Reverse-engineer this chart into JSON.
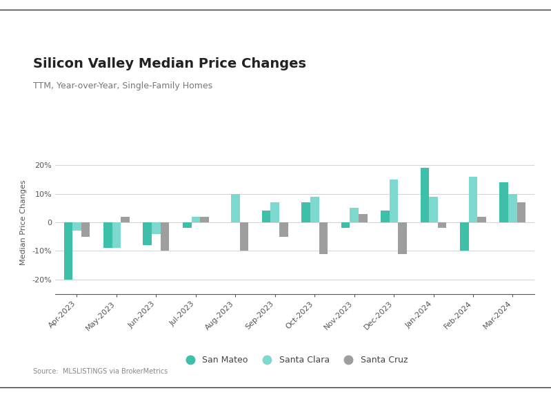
{
  "title": "Silicon Valley Median Price Changes",
  "subtitle": "TTM, Year-over-Year, Single-Family Homes",
  "ylabel": "Median Price Changes",
  "source": "Source:  MLSLISTINGS via BrokerMetrics",
  "categories": [
    "Apr-2023",
    "May-2023",
    "Jun-2023",
    "Jul-2023",
    "Aug-2023",
    "Sep-2023",
    "Oct-2023",
    "Nov-2023",
    "Dec-2023",
    "Jan-2024",
    "Feb-2024",
    "Mar-2024"
  ],
  "san_mateo": [
    -20,
    -9,
    -8,
    -2,
    0,
    4,
    7,
    -2,
    4,
    19,
    -10,
    14
  ],
  "santa_clara": [
    -3,
    -9,
    -4,
    2,
    10,
    7,
    9,
    5,
    15,
    9,
    16,
    10
  ],
  "santa_cruz": [
    -5,
    2,
    -10,
    2,
    -10,
    -5,
    -11,
    3,
    -11,
    -2,
    2,
    7
  ],
  "color_san_mateo": "#3dbfaa",
  "color_santa_clara": "#7dd9d0",
  "color_santa_cruz": "#9e9e9e",
  "ylim": [
    -25,
    25
  ],
  "yticks": [
    -20,
    -10,
    0,
    10,
    20
  ],
  "ytick_labels": [
    "-20%",
    "-10%",
    "0",
    "10%",
    "20%"
  ],
  "background_color": "#ffffff",
  "border_color": "#333333",
  "title_fontsize": 14,
  "subtitle_fontsize": 9,
  "legend_fontsize": 9,
  "axis_fontsize": 8,
  "bar_width": 0.22
}
